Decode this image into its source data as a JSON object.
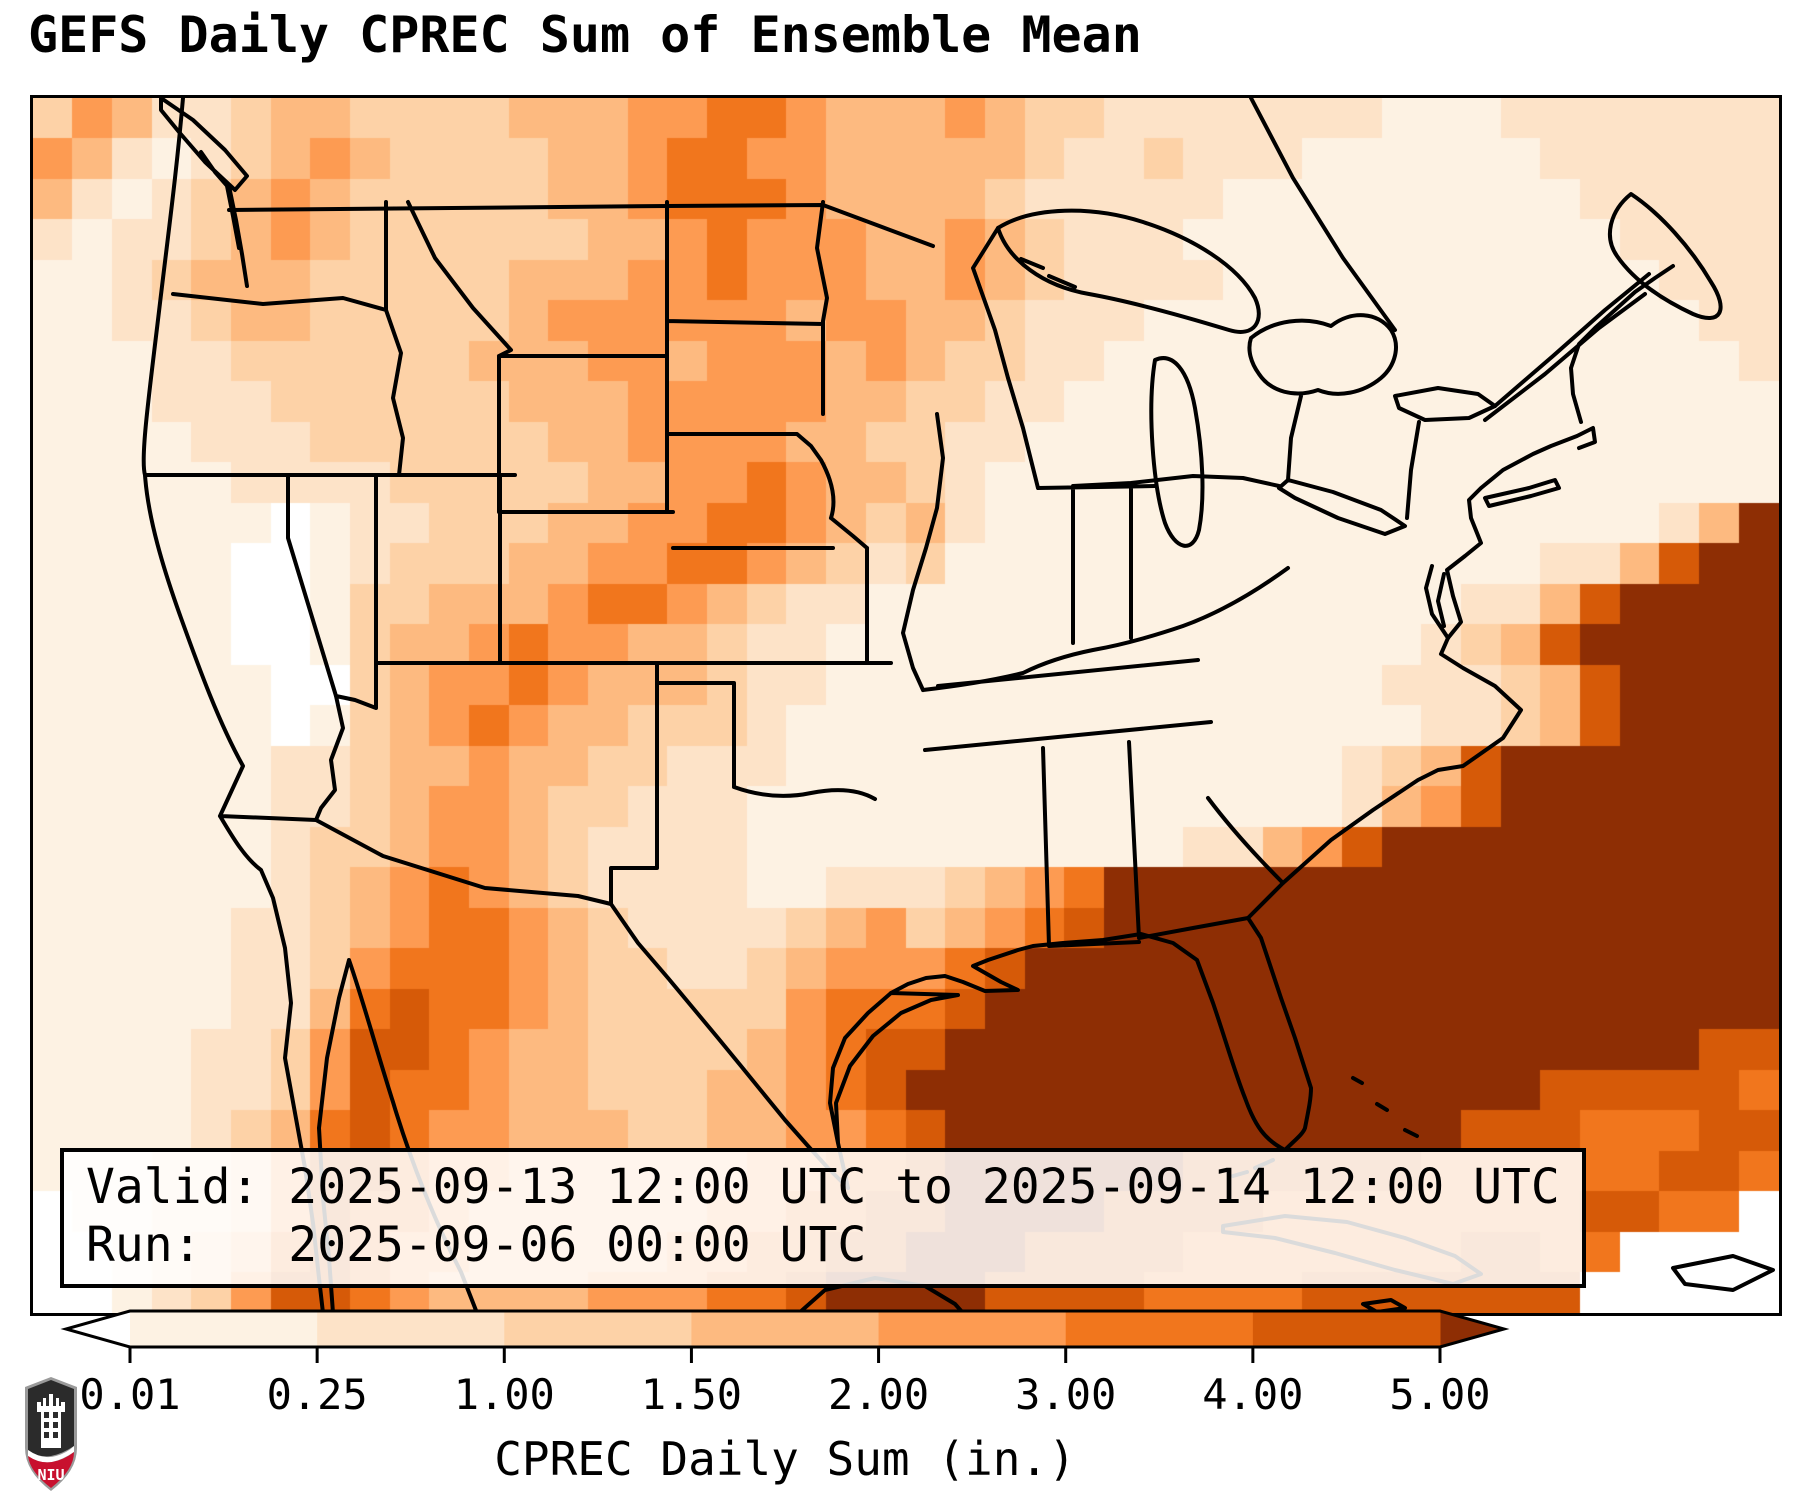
{
  "title": "GEFS Daily CPREC Sum of Ensemble Mean",
  "info_box": {
    "valid_line": "Valid: 2025-09-13 12:00 UTC to 2025-09-14 12:00 UTC",
    "run_line": "Run:   2025-09-06 00:00 UTC"
  },
  "colorbar": {
    "label": "CPREC Daily Sum (in.)",
    "ticks": [
      "0.01",
      "0.25",
      "1.00",
      "1.50",
      "2.00",
      "3.00",
      "4.00",
      "5.00"
    ],
    "segment_colors": [
      "#fdf2e3",
      "#fde3c8",
      "#fdd2a7",
      "#fdba80",
      "#fd9b52",
      "#f1761d",
      "#d65a08"
    ],
    "under_color": "#ffffff",
    "over_color": "#8e2e04",
    "outline_color": "#000000"
  },
  "logo": {
    "text": "NIU",
    "shield_dark": "#2b2b2b",
    "shield_red": "#c8102e",
    "border_gray": "#9a9a9a"
  },
  "chart_data": {
    "type": "heatmap",
    "title": "GEFS Daily CPREC Sum of Ensemble Mean",
    "variable": "CPREC Daily Sum",
    "units": "in.",
    "valid": "2025-09-13 12:00 UTC to 2025-09-14 12:00 UTC",
    "run": "2025-09-06 00:00 UTC",
    "levels_in": [
      0.01,
      0.25,
      1.0,
      1.5,
      2.0,
      3.0,
      4.0,
      5.0
    ],
    "legend_note": "cell codes: 0=<0.01, 1=0.01-0.25, 2=0.25-1.00, 3=1.00-1.50, 4=1.50-2.00, 5=2.00-3.00, 6=3.00-4.00, 7=4.00-5.00, 8=>5.00",
    "palette": [
      "#ffffff",
      "#fdf2e3",
      "#fde3c8",
      "#fdd2a7",
      "#fdba80",
      "#fd9b52",
      "#f1761d",
      "#d65a08",
      "#8e2e04"
    ],
    "cols": 44,
    "rows": 30,
    "grid": [
      "35422344333344455665444543322222221112222222",
      "54212345433334456655444443223222111111222222",
      "42123454333334456665444432222211111111122222",
      "21223454333333445655544543222111111111112222",
      "11234443333344455655544543222211111111111222",
      "11223443333345555554554432221111111111111122",
      "11122333333444554555454332211111111111111112",
      "11122233333344455555443322111111111111111111",
      "11112223333334455554433221111111111111111111",
      "11111222233333445565443211111111111111111111",
      "11111101223334455665434211111111111111111248",
      "11111001233344556654323111111111111111224788",
      "11111001334445665432211111111111111122478888",
      "11111001344565544322111111111111111234788888",
      "11111100345565444322111111111111112223478888",
      "11111101345654433321111111111111111223478888",
      "11111122344544332221111111111111123478888888",
      "11111122345543322211111111111111124578888888",
      "11111123345543222211111111111224578888888888",
      "11111123456543222211222345688888888888888888",
      "11111223456654322223453456788888888888888888",
      "11111223566654332234555678888888888888888888",
      "11111224676654333335666788888888888888888888",
      "11112235776544333345677888888888888888888877",
      "11112235766544333445678888888888888888777776",
      "11112346765544433445567888888888888877766677",
      "11122357765544444455667888888777777666666776",
      "01122357665444444556677888877776666666677660",
      "00123467655444445566778887777666666677660000",
      "00123577654444555667888877776666777777700000"
    ]
  }
}
